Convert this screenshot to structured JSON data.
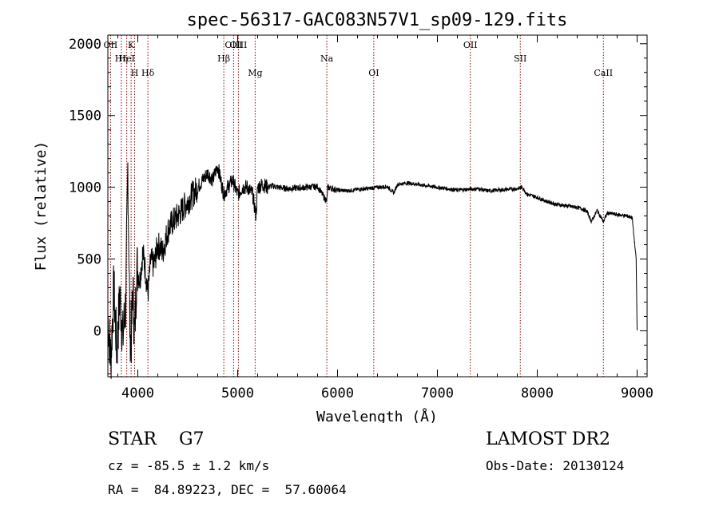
{
  "chart_data": {
    "type": "line",
    "title": "spec-56317-GAC083N57V1_sp09-129.fits",
    "xlabel": "Wavelength (Å)",
    "ylabel": "Flux (relative)",
    "xlim": [
      3700,
      9100
    ],
    "ylim": [
      -320,
      2060
    ],
    "x_ticks": [
      4000,
      5000,
      6000,
      7000,
      8000,
      9000
    ],
    "y_ticks": [
      0,
      500,
      1000,
      1500,
      2000
    ],
    "grid": false,
    "line_color": "#000000",
    "marker_color": "#8b0000",
    "series": [
      {
        "x": [
          3700,
          3730,
          3760,
          3790,
          3820,
          3850,
          3880,
          3900,
          3920,
          3933,
          3950,
          3968,
          3990,
          4020,
          4050,
          4080,
          4101,
          4130,
          4160,
          4200,
          4250,
          4300,
          4340,
          4400,
          4450,
          4500,
          4550,
          4600,
          4650,
          4700,
          4750,
          4800,
          4830,
          4861,
          4900,
          4950,
          5000,
          5050,
          5100,
          5150,
          5183,
          5200,
          5250,
          5300,
          5350,
          5400,
          5500,
          5600,
          5700,
          5800,
          5893,
          5900,
          6000,
          6100,
          6200,
          6300,
          6400,
          6500,
          6563,
          6600,
          6700,
          6800,
          6900,
          7000,
          7100,
          7200,
          7300,
          7400,
          7500,
          7600,
          7700,
          7800,
          7850,
          7900,
          8000,
          8100,
          8200,
          8300,
          8400,
          8450,
          8500,
          8542,
          8600,
          8662,
          8700,
          8800,
          8900,
          8950,
          8990,
          9000
        ],
        "y": [
          100,
          -200,
          300,
          -150,
          250,
          -50,
          200,
          1150,
          50,
          -100,
          300,
          -50,
          450,
          350,
          550,
          400,
          250,
          500,
          450,
          600,
          550,
          700,
          750,
          800,
          850,
          900,
          950,
          1000,
          1050,
          1100,
          1050,
          1150,
          1050,
          950,
          1000,
          1050,
          950,
          1000,
          1000,
          950,
          800,
          1000,
          1020,
          1000,
          1010,
          1000,
          990,
          995,
          1000,
          1005,
          900,
          1000,
          980,
          975,
          985,
          990,
          1000,
          1005,
          960,
          1020,
          1030,
          1020,
          1010,
          1000,
          990,
          980,
          985,
          990,
          975,
          980,
          985,
          990,
          1000,
          950,
          930,
          900,
          880,
          870,
          860,
          850,
          830,
          760,
          840,
          760,
          820,
          810,
          800,
          790,
          500,
          0
        ]
      }
    ],
    "line_markers": [
      {
        "label": "OII",
        "x": 3727
      },
      {
        "label": "Hη",
        "x": 3835
      },
      {
        "label": "H",
        "x": 3968
      },
      {
        "label": "K",
        "x": 3933
      },
      {
        "label": "HeI",
        "x": 3889
      },
      {
        "label": "Hδ",
        "x": 4101
      },
      {
        "label": "OIII",
        "x": 5007
      },
      {
        "label": "Hβ",
        "x": 4861
      },
      {
        "label": "Mg",
        "x": 5175
      },
      {
        "label": "OIII",
        "x": 4959
      },
      {
        "label": "Na",
        "x": 5893
      },
      {
        "label": "OI",
        "x": 6363
      },
      {
        "label": "OII",
        "x": 7330
      },
      {
        "label": "SII",
        "x": 7830
      },
      {
        "label": "CaII",
        "x": 8662
      }
    ]
  },
  "info": {
    "object": "STAR    G7",
    "cz": "cz = -85.5 ± 1.2 km/s",
    "coords": "RA =  84.89223, DEC =  57.60064",
    "survey": "LAMOST DR2",
    "obs_date": "Obs-Date: 20130124"
  }
}
